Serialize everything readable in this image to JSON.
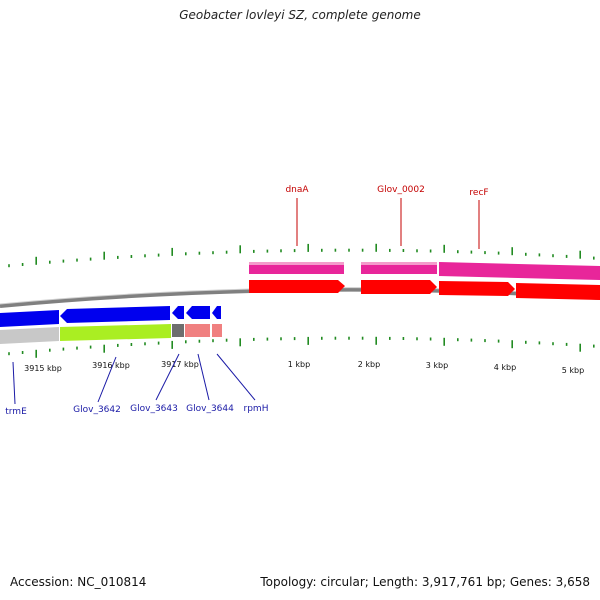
{
  "title": "Geobacter lovleyi SZ, complete genome",
  "footer": {
    "accession": "Accession: NC_010814",
    "summary": "Topology: circular; Length: 3,917,761 bp; Genes: 3,658"
  },
  "ticks_top": [
    "1 kbp",
    "2 kbp",
    "3 kbp",
    "4 kbp",
    "5 kbp"
  ],
  "ticks_bottom": [
    "3915 kbp",
    "3916 kbp",
    "3917 kbp"
  ],
  "genes_forward": [
    "dnaA",
    "Glov_0002",
    "recF"
  ],
  "genes_reverse": [
    "trmE",
    "Glov_3642",
    "Glov_3643",
    "Glov_3644",
    "rpmH"
  ],
  "colors": {
    "forward_cds": "#ff0000",
    "forward_gene": "#e8269a",
    "reverse_cds": "#0000ee",
    "reverse_gene_green": "#aaee22",
    "reverse_gene_grey": "#c8c8c8",
    "reverse_gene_pink": "#f08080",
    "backbone": "#808080",
    "tick": "#228b22"
  }
}
